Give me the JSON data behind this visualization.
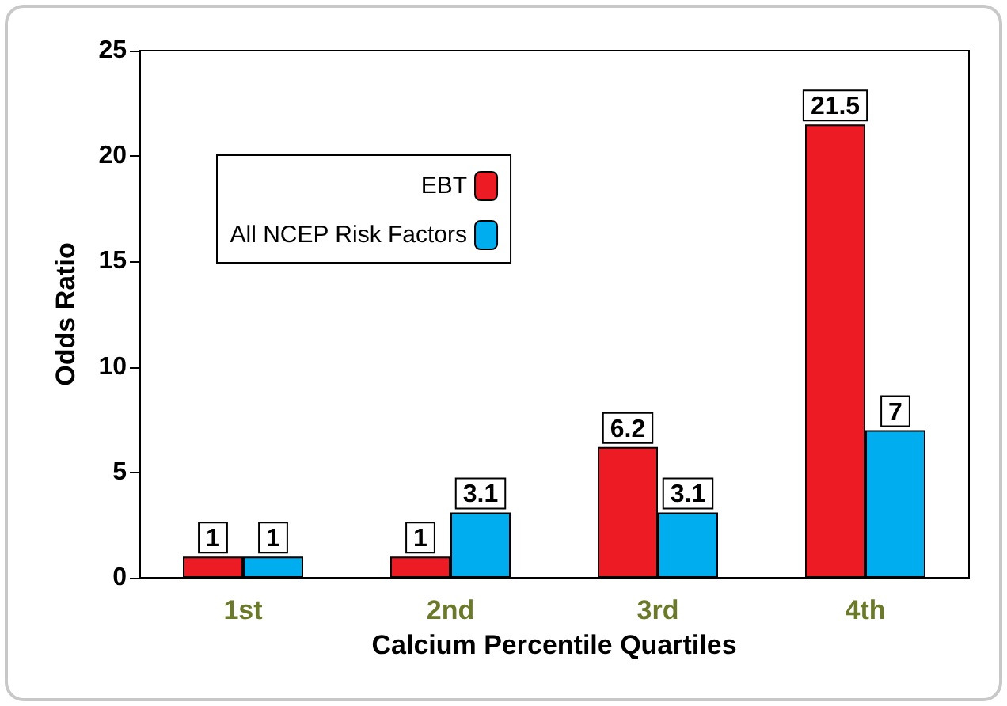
{
  "chart_data": {
    "type": "bar",
    "xlabel": "Calcium Percentile Quartiles",
    "ylabel": "Odds Ratio",
    "categories": [
      "1st",
      "2nd",
      "3rd",
      "4th"
    ],
    "series": [
      {
        "name": "EBT",
        "color": "#ed1c24",
        "values": [
          1,
          1,
          6.2,
          21.5
        ]
      },
      {
        "name": "All NCEP Risk Factors",
        "color": "#00aeef",
        "values": [
          1,
          3.1,
          3.1,
          7
        ]
      }
    ],
    "ylim": [
      0,
      25
    ],
    "yticks": [
      0,
      5,
      10,
      15,
      20,
      25
    ],
    "grid": false,
    "legend": "top left",
    "data_labels": true
  }
}
